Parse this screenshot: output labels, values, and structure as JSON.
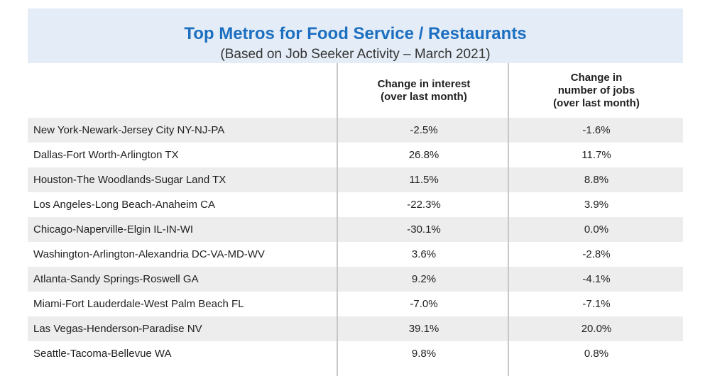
{
  "chart_data": {
    "type": "table",
    "title": "Top Metros for Food Service / Restaurants",
    "subtitle": "(Based on Job Seeker Activity – March 2021)",
    "columns": [
      "",
      "Change in interest (over last month)",
      "Change in number of jobs (over last month)"
    ],
    "column_lines": {
      "interest": [
        "Change in interest",
        "(over last month)"
      ],
      "jobs": [
        "Change in",
        "number of jobs",
        "(over last month)"
      ]
    },
    "rows": [
      {
        "metro": "New York-Newark-Jersey City NY-NJ-PA",
        "interest": "-2.5%",
        "jobs": "-1.6%"
      },
      {
        "metro": "Dallas-Fort Worth-Arlington TX",
        "interest": "26.8%",
        "jobs": "11.7%"
      },
      {
        "metro": "Houston-The Woodlands-Sugar Land TX",
        "interest": "11.5%",
        "jobs": "8.8%"
      },
      {
        "metro": "Los Angeles-Long Beach-Anaheim CA",
        "interest": "-22.3%",
        "jobs": "3.9%"
      },
      {
        "metro": "Chicago-Naperville-Elgin IL-IN-WI",
        "interest": "-30.1%",
        "jobs": "0.0%"
      },
      {
        "metro": "Washington-Arlington-Alexandria DC-VA-MD-WV",
        "interest": "3.6%",
        "jobs": "-2.8%"
      },
      {
        "metro": "Atlanta-Sandy Springs-Roswell GA",
        "interest": "9.2%",
        "jobs": "-4.1%"
      },
      {
        "metro": "Miami-Fort Lauderdale-West Palm Beach FL",
        "interest": "-7.0%",
        "jobs": "-7.1%"
      },
      {
        "metro": "Las Vegas-Henderson-Paradise NV",
        "interest": "39.1%",
        "jobs": "20.0%"
      },
      {
        "metro": "Seattle-Tacoma-Bellevue WA",
        "interest": "9.8%",
        "jobs": "0.8%"
      }
    ]
  },
  "colors": {
    "title": "#1c6fc0",
    "header_band": "#e4edf7",
    "row_shade": "#ededed",
    "divider": "#c8c8c8"
  }
}
